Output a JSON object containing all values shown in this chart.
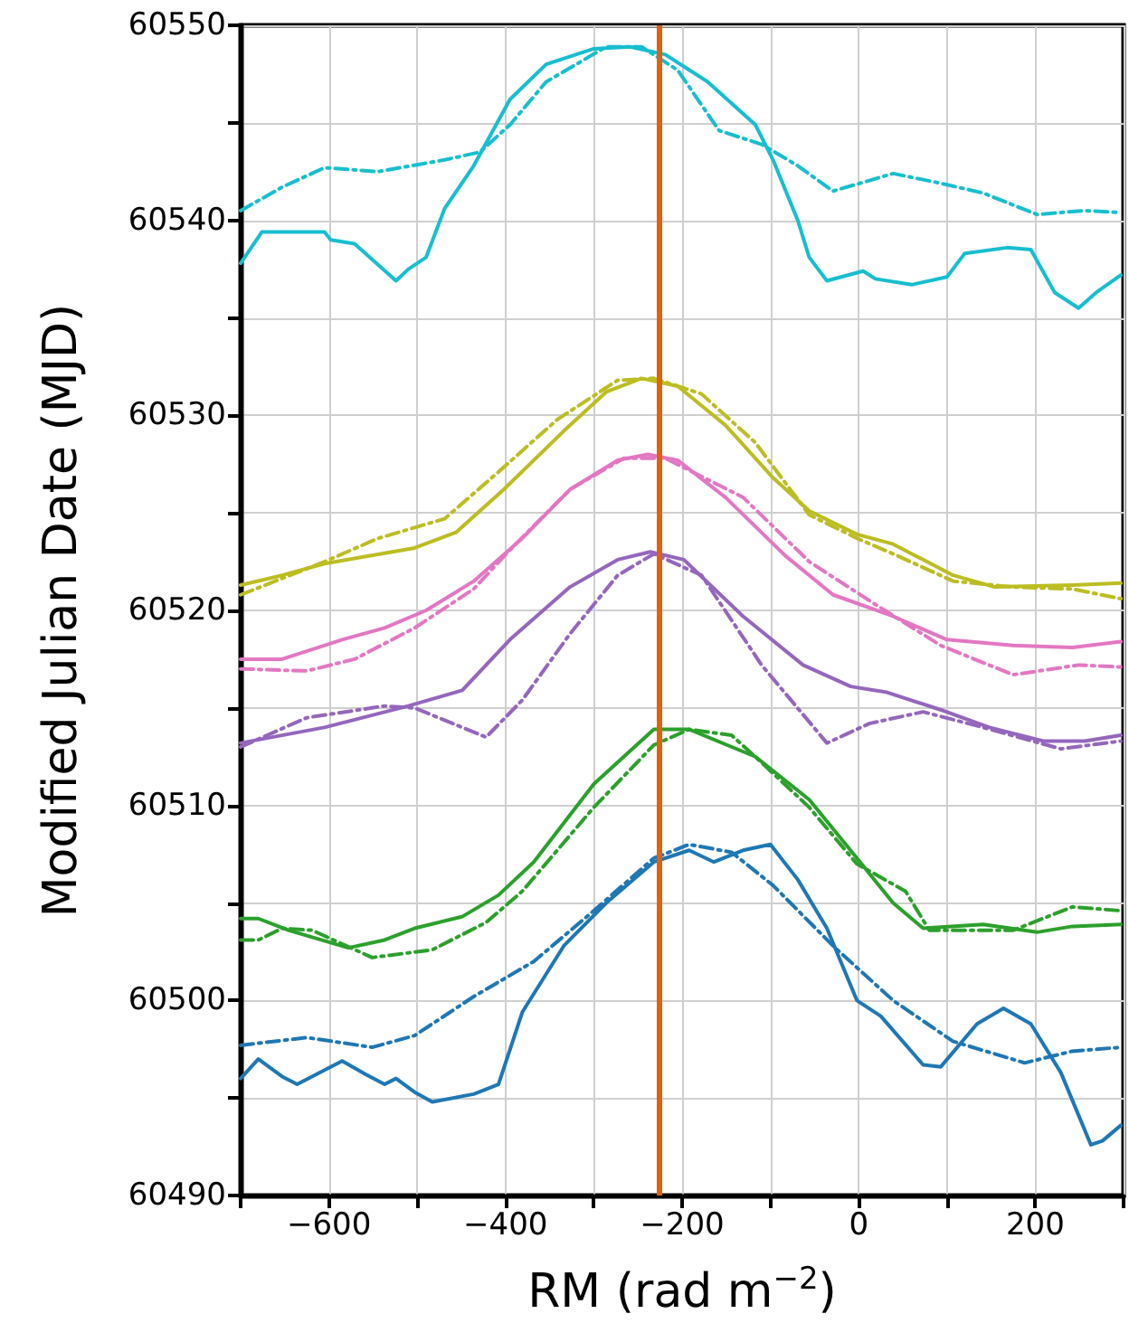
{
  "chart_data": {
    "type": "line",
    "xlabel": "RM (rad m$^{−2}$)",
    "ylabel": "Modified Julian Date (MJD)",
    "xlim": [
      -700,
      300
    ],
    "xticks": [
      {
        "value": -700,
        "label": null
      },
      -600,
      {
        "value": -500,
        "label": null
      },
      -400,
      {
        "value": -300,
        "label": null
      },
      -200,
      {
        "value": -100,
        "label": null
      },
      0,
      {
        "value": 100,
        "label": null
      },
      200,
      {
        "value": 300,
        "label": null
      }
    ],
    "ylim": [
      60490,
      60550
    ],
    "yticks": [
      60490,
      {
        "value": 60495,
        "label": null
      },
      60500,
      {
        "value": 60505,
        "label": null
      },
      60510,
      {
        "value": 60515,
        "label": null
      },
      60520,
      {
        "value": 60525,
        "label": null
      },
      60530,
      {
        "value": 60535,
        "label": null
      },
      60540,
      {
        "value": 60545,
        "label": null
      },
      60550
    ],
    "grid": true,
    "ref_lines": [
      {
        "axis": "x",
        "value": -226,
        "color": "#e0620c"
      }
    ],
    "series": [
      {
        "color": "#17becf",
        "line_style": "solid",
        "x": [
          -700,
          -676,
          -659,
          -605,
          -598,
          -571,
          -524,
          -510,
          -490,
          -469,
          -436,
          -395,
          -354,
          -300,
          -259,
          -219,
          -171,
          -144,
          -117,
          -97,
          -69,
          -56,
          -36,
          5,
          19,
          60,
          100,
          120,
          168,
          195,
          222,
          249,
          269,
          297
        ],
        "values": [
          60537.8,
          60539.4,
          60539.4,
          60539.4,
          60539.0,
          60538.8,
          60536.9,
          60537.5,
          60538.1,
          60540.6,
          60542.8,
          60546.2,
          60548.0,
          60548.8,
          60548.9,
          60548.5,
          60547.1,
          60546.0,
          60544.9,
          60543.1,
          60540.0,
          60538.1,
          60536.9,
          60537.4,
          60537.0,
          60536.7,
          60537.1,
          60538.3,
          60538.6,
          60538.5,
          60536.3,
          60535.5,
          60536.3,
          60537.2
        ]
      },
      {
        "color": "#17becf",
        "line_style": "dashed",
        "x": [
          -700,
          -653,
          -605,
          -544,
          -469,
          -429,
          -395,
          -354,
          -286,
          -246,
          -205,
          -158,
          -110,
          -69,
          -29,
          39,
          93,
          141,
          202,
          256,
          297
        ],
        "values": [
          60540.5,
          60541.7,
          60542.7,
          60542.5,
          60543.1,
          60543.5,
          60544.9,
          60547.1,
          60548.9,
          60548.9,
          60547.7,
          60544.6,
          60543.9,
          60542.8,
          60541.5,
          60542.4,
          60541.9,
          60541.4,
          60540.3,
          60540.5,
          60540.4
        ]
      },
      {
        "color": "#bcbd22",
        "line_style": "solid",
        "x": [
          -700,
          -653,
          -605,
          -503,
          -456,
          -402,
          -334,
          -286,
          -246,
          -205,
          -151,
          -97,
          -56,
          -2,
          39,
          107,
          154,
          242,
          297
        ],
        "values": [
          60521.3,
          60521.8,
          60522.4,
          60523.2,
          60524.0,
          60526.2,
          60529.2,
          60531.2,
          60531.9,
          60531.5,
          60529.5,
          60526.8,
          60525.1,
          60523.9,
          60523.4,
          60521.8,
          60521.2,
          60521.3,
          60521.4
        ]
      },
      {
        "color": "#bcbd22",
        "line_style": "dashed",
        "x": [
          -700,
          -605,
          -544,
          -469,
          -408,
          -341,
          -273,
          -232,
          -178,
          -117,
          -56,
          -2,
          39,
          107,
          175,
          242,
          297
        ],
        "values": [
          60520.8,
          60522.5,
          60523.7,
          60524.7,
          60527.1,
          60529.8,
          60531.8,
          60531.9,
          60531.1,
          60528.6,
          60524.9,
          60523.7,
          60522.9,
          60521.5,
          60521.2,
          60521.1,
          60520.6
        ]
      },
      {
        "color": "#e377c2",
        "line_style": "solid",
        "x": [
          -700,
          -653,
          -585,
          -537,
          -490,
          -436,
          -381,
          -327,
          -273,
          -239,
          -205,
          -151,
          -83,
          -29,
          39,
          100,
          175,
          242,
          297
        ],
        "values": [
          60517.5,
          60517.5,
          60518.5,
          60519.1,
          60520.0,
          60521.5,
          60523.7,
          60526.2,
          60527.7,
          60528.0,
          60527.7,
          60525.8,
          60522.8,
          60520.8,
          60519.7,
          60518.5,
          60518.2,
          60518.1,
          60518.4
        ]
      },
      {
        "color": "#e377c2",
        "line_style": "dashed",
        "x": [
          -700,
          -625,
          -571,
          -503,
          -436,
          -395,
          -327,
          -266,
          -219,
          -131,
          -56,
          19,
          93,
          175,
          249,
          297
        ],
        "values": [
          60517.0,
          60516.9,
          60517.5,
          60519.1,
          60521.1,
          60523.1,
          60526.2,
          60527.8,
          60527.8,
          60525.8,
          60522.5,
          60520.3,
          60518.2,
          60516.7,
          60517.2,
          60517.1
        ]
      },
      {
        "color": "#9467bd",
        "line_style": "solid",
        "x": [
          -700,
          -605,
          -510,
          -449,
          -395,
          -327,
          -273,
          -236,
          -198,
          -131,
          -63,
          -9,
          32,
          93,
          148,
          209,
          256,
          297
        ],
        "values": [
          60513.2,
          60514.0,
          60515.1,
          60515.9,
          60518.5,
          60521.2,
          60522.6,
          60523.0,
          60522.6,
          60519.7,
          60517.2,
          60516.1,
          60515.8,
          60514.9,
          60514.0,
          60513.3,
          60513.3,
          60513.6
        ]
      },
      {
        "color": "#9467bd",
        "line_style": "dashed",
        "x": [
          -700,
          -625,
          -537,
          -503,
          -422,
          -381,
          -327,
          -273,
          -232,
          -178,
          -110,
          -36,
          12,
          73,
          141,
          229,
          297
        ],
        "values": [
          60513.0,
          60514.5,
          60515.1,
          60515.0,
          60513.5,
          60515.4,
          60518.8,
          60521.8,
          60522.9,
          60521.8,
          60517.2,
          60513.2,
          60514.2,
          60514.8,
          60514.0,
          60512.9,
          60513.3
        ]
      },
      {
        "color": "#2ca02c",
        "line_style": "solid",
        "x": [
          -700,
          -680,
          -646,
          -578,
          -537,
          -503,
          -449,
          -408,
          -368,
          -300,
          -232,
          -192,
          -117,
          -56,
          -2,
          39,
          73,
          141,
          202,
          242,
          297
        ],
        "values": [
          60504.2,
          60504.2,
          60503.6,
          60502.7,
          60503.1,
          60503.7,
          60504.3,
          60505.4,
          60507.1,
          60511.1,
          60513.9,
          60513.9,
          60512.5,
          60510.3,
          60507.3,
          60505.0,
          60503.7,
          60503.9,
          60503.5,
          60503.8,
          60503.9
        ]
      },
      {
        "color": "#2ca02c",
        "line_style": "dashed",
        "x": [
          -700,
          -680,
          -653,
          -619,
          -551,
          -483,
          -422,
          -381,
          -300,
          -232,
          -192,
          -144,
          -110,
          -56,
          -2,
          53,
          80,
          175,
          242,
          297
        ],
        "values": [
          60503.1,
          60503.1,
          60503.7,
          60503.6,
          60502.2,
          60502.6,
          60504.0,
          60505.6,
          60509.9,
          60513.1,
          60513.9,
          60513.6,
          60512.2,
          60509.9,
          60507.0,
          60505.6,
          60503.6,
          60503.6,
          60504.8,
          60504.6
        ]
      },
      {
        "color": "#1f77b4",
        "line_style": "solid",
        "x": [
          -700,
          -680,
          -653,
          -636,
          -585,
          -558,
          -537,
          -524,
          -503,
          -483,
          -436,
          -408,
          -381,
          -334,
          -286,
          -232,
          -192,
          -164,
          -131,
          -100,
          -69,
          -36,
          -2,
          25,
          73,
          93,
          134,
          164,
          195,
          229,
          263,
          276,
          297
        ],
        "values": [
          60496.0,
          60497.0,
          60496.1,
          60495.7,
          60496.9,
          60496.2,
          60495.7,
          60496.0,
          60495.3,
          60494.8,
          60495.2,
          60495.7,
          60499.4,
          60502.8,
          60505.0,
          60507.1,
          60507.7,
          60507.1,
          60507.7,
          60508.0,
          60506.2,
          60503.7,
          60500.0,
          60499.2,
          60496.7,
          60496.6,
          60498.8,
          60499.6,
          60498.8,
          60496.3,
          60492.6,
          60492.8,
          60493.6
        ]
      },
      {
        "color": "#1f77b4",
        "line_style": "dashed",
        "x": [
          -700,
          -625,
          -551,
          -503,
          -436,
          -368,
          -300,
          -232,
          -192,
          -144,
          -97,
          -29,
          39,
          107,
          188,
          242,
          297
        ],
        "values": [
          60497.7,
          60498.1,
          60497.6,
          60498.2,
          60500.2,
          60502.0,
          60504.6,
          60507.3,
          60508.0,
          60507.6,
          60505.9,
          60502.8,
          60500.0,
          60497.9,
          60496.8,
          60497.4,
          60497.6
        ]
      }
    ]
  }
}
